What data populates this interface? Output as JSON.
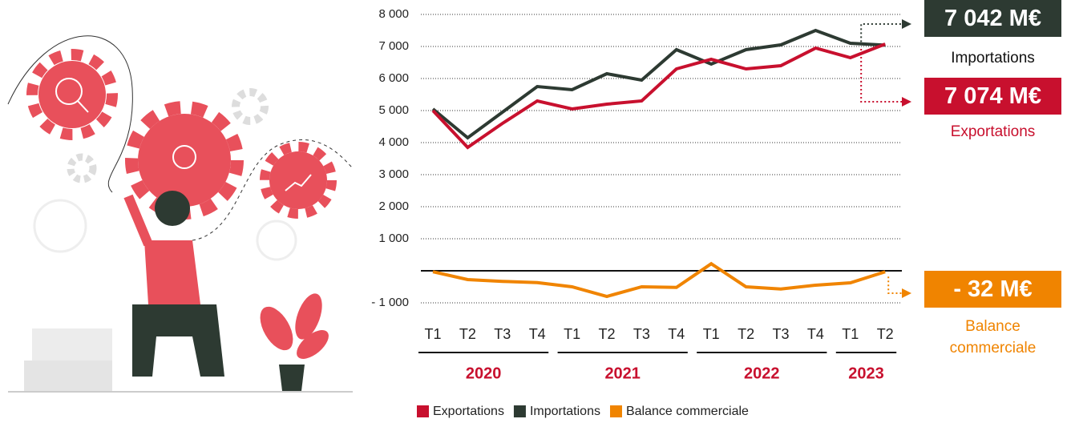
{
  "chart_data": {
    "type": "line",
    "groups": [
      {
        "label": "2020",
        "categories": [
          "T1",
          "T2",
          "T3",
          "T4"
        ]
      },
      {
        "label": "2021",
        "categories": [
          "T1",
          "T2",
          "T3",
          "T4"
        ]
      },
      {
        "label": "2022",
        "categories": [
          "T1",
          "T2",
          "T3",
          "T4"
        ]
      },
      {
        "label": "2023",
        "categories": [
          "T1",
          "T2"
        ]
      }
    ],
    "series": [
      {
        "name": "Exportations",
        "color": "#c8102e",
        "values": [
          5000,
          3850,
          4600,
          5300,
          5050,
          5200,
          5300,
          6300,
          6600,
          6300,
          6400,
          6950,
          6650,
          7074
        ],
        "value_labels": [
          null,
          null,
          null,
          null,
          null,
          null,
          null,
          null,
          null,
          null,
          null,
          null,
          null,
          "7 074 M€"
        ]
      },
      {
        "name": "Importations",
        "color": "#2d3a32",
        "values": [
          5050,
          4150,
          4950,
          5750,
          5650,
          6150,
          5950,
          6900,
          6450,
          6900,
          7050,
          7500,
          7100,
          7042
        ],
        "value_labels": [
          null,
          null,
          null,
          null,
          null,
          null,
          null,
          null,
          null,
          null,
          null,
          null,
          null,
          "7 042 M€"
        ]
      },
      {
        "name": "Balance commerciale",
        "color": "#f08400",
        "values": [
          -30,
          -275,
          -330,
          -370,
          -500,
          -800,
          -500,
          -520,
          220,
          -500,
          -570,
          -450,
          -375,
          -32
        ],
        "value_labels": [
          null,
          null,
          null,
          null,
          null,
          null,
          null,
          null,
          null,
          null,
          null,
          null,
          null,
          "- 32 M€"
        ]
      }
    ],
    "ylim": [
      -1000,
      8000
    ],
    "yticks": [
      {
        "value": 8000,
        "label": "8 000"
      },
      {
        "value": 7000,
        "label": "7 000"
      },
      {
        "value": 6000,
        "label": "6 000"
      },
      {
        "value": 5000,
        "label": "5 000"
      },
      {
        "value": 4000,
        "label": "4 000"
      },
      {
        "value": 3000,
        "label": "3 000"
      },
      {
        "value": 2000,
        "label": "2 000"
      },
      {
        "value": 1000,
        "label": "1 000"
      },
      {
        "value": -1000,
        "label": "- 1 000"
      }
    ],
    "grid": true
  }
}
